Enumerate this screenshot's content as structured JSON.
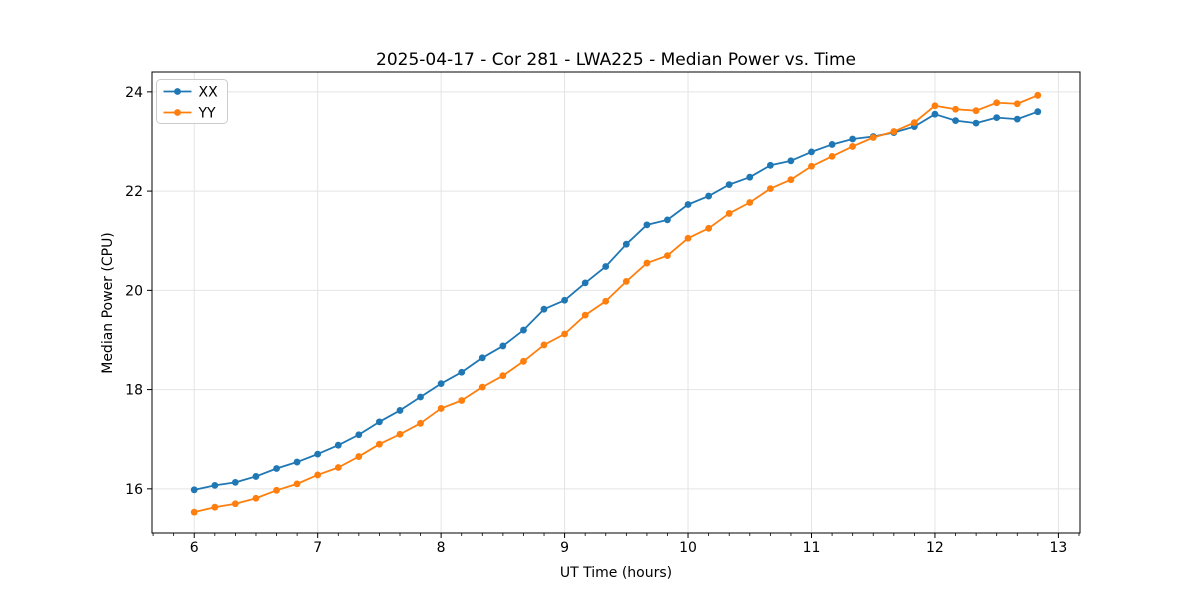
{
  "chart_data": {
    "type": "line",
    "title": "2025-04-17 - Cor 281 - LWA225 - Median Power vs. Time",
    "xlabel": "UT Time (hours)",
    "ylabel": "Median Power (CPU)",
    "xlim": [
      5.658,
      13.175
    ],
    "ylim": [
      15.11,
      24.4
    ],
    "x_major_ticks": [
      6,
      7,
      8,
      9,
      10,
      11,
      12,
      13
    ],
    "x_minor_step": 0.16667,
    "y_major_ticks": [
      16,
      18,
      20,
      22,
      24
    ],
    "grid": "major",
    "grid_color": "#e4e4e4",
    "spine_color": "#000000",
    "background_color": "#ffffff",
    "legend": {
      "position": "upper-left",
      "entries": [
        "XX",
        "YY"
      ]
    },
    "x": [
      6.0,
      6.167,
      6.333,
      6.5,
      6.667,
      6.833,
      7.0,
      7.167,
      7.333,
      7.5,
      7.667,
      7.833,
      8.0,
      8.167,
      8.333,
      8.5,
      8.667,
      8.833,
      9.0,
      9.167,
      9.333,
      9.5,
      9.667,
      9.833,
      10.0,
      10.167,
      10.333,
      10.5,
      10.667,
      10.833,
      11.0,
      11.167,
      11.333,
      11.5,
      11.667,
      11.833,
      12.0,
      12.167,
      12.333,
      12.5,
      12.667,
      12.833
    ],
    "series": [
      {
        "name": "XX",
        "color": "#1f77b4",
        "marker": "circle",
        "values": [
          15.98,
          16.07,
          16.13,
          16.25,
          16.41,
          16.54,
          16.7,
          16.88,
          17.09,
          17.35,
          17.58,
          17.85,
          18.12,
          18.35,
          18.64,
          18.88,
          19.2,
          19.62,
          19.8,
          20.15,
          20.48,
          20.93,
          21.32,
          21.42,
          21.73,
          21.9,
          22.13,
          22.28,
          22.52,
          22.61,
          22.79,
          22.94,
          23.05,
          23.1,
          23.18,
          23.3,
          23.55,
          23.42,
          23.37,
          23.48,
          23.45,
          23.6
        ]
      },
      {
        "name": "YY",
        "color": "#ff7f0e",
        "marker": "circle",
        "values": [
          15.53,
          15.63,
          15.7,
          15.81,
          15.97,
          16.1,
          16.28,
          16.43,
          16.65,
          16.9,
          17.1,
          17.32,
          17.62,
          17.78,
          18.05,
          18.28,
          18.57,
          18.9,
          19.12,
          19.5,
          19.78,
          20.18,
          20.55,
          20.7,
          21.05,
          21.25,
          21.55,
          21.77,
          22.05,
          22.23,
          22.5,
          22.7,
          22.9,
          23.08,
          23.2,
          23.38,
          23.72,
          23.65,
          23.62,
          23.78,
          23.76,
          23.93
        ]
      }
    ]
  }
}
